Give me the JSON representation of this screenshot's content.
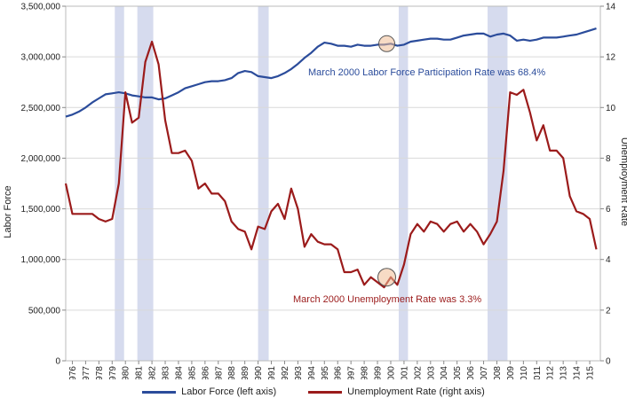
{
  "chart_data": {
    "type": "line",
    "ylabel_left": "Labor Force",
    "ylabel_right": "Unemployment Rate",
    "ylim_left": [
      0,
      3500000
    ],
    "ylim_right": [
      0,
      14
    ],
    "yticks_left": [
      "0",
      "500,000",
      "1,000,000",
      "1,500,000",
      "2,000,000",
      "2,500,000",
      "3,000,000",
      "3,500,000"
    ],
    "yticks_right": [
      "0",
      "2",
      "4",
      "6",
      "8",
      "10",
      "12",
      "14"
    ],
    "xlim": [
      1975.5,
      2015.8
    ],
    "xticks": [
      "1976",
      "1977",
      "1978",
      "1979",
      "1980",
      "1981",
      "1982",
      "1983",
      "1984",
      "1985",
      "1986",
      "1987",
      "1988",
      "1989",
      "1990",
      "1991",
      "1992",
      "1993",
      "1994",
      "1995",
      "1996",
      "1997",
      "1998",
      "1999",
      "2000",
      "2001",
      "2002",
      "2003",
      "2004",
      "2005",
      "2006",
      "2007",
      "2008",
      "2009",
      "2010",
      "2011",
      "2012",
      "2013",
      "2014",
      "2015"
    ],
    "grid": true,
    "legend_position": "bottom",
    "recessions": [
      [
        1979.2,
        1979.9
      ],
      [
        1980.9,
        1982.1
      ],
      [
        1990.0,
        1990.8
      ],
      [
        2000.6,
        2001.3
      ],
      [
        2007.3,
        2008.8
      ]
    ],
    "series": [
      {
        "name": "Labor Force (left axis)",
        "axis": "left",
        "color": "#2b4c9b",
        "x": [
          1975.5,
          1976.0,
          1976.5,
          1977.0,
          1977.5,
          1978.0,
          1978.5,
          1979.0,
          1979.5,
          1980.0,
          1980.5,
          1981.0,
          1981.5,
          1982.0,
          1982.5,
          1983.0,
          1983.5,
          1984.0,
          1984.5,
          1985.0,
          1985.5,
          1986.0,
          1986.5,
          1987.0,
          1987.5,
          1988.0,
          1988.5,
          1989.0,
          1989.5,
          1990.0,
          1990.5,
          1991.0,
          1991.5,
          1992.0,
          1992.5,
          1993.0,
          1993.5,
          1994.0,
          1994.5,
          1995.0,
          1995.5,
          1996.0,
          1996.5,
          1997.0,
          1997.5,
          1998.0,
          1998.5,
          1999.0,
          1999.5,
          2000.0,
          2000.5,
          2001.0,
          2001.5,
          2002.0,
          2002.5,
          2003.0,
          2003.5,
          2004.0,
          2004.5,
          2005.0,
          2005.5,
          2006.0,
          2006.5,
          2007.0,
          2007.5,
          2008.0,
          2008.5,
          2009.0,
          2009.5,
          2010.0,
          2010.5,
          2011.0,
          2011.5,
          2012.0,
          2012.5,
          2013.0,
          2013.5,
          2014.0,
          2014.5,
          2015.0,
          2015.5
        ],
        "values": [
          2410000,
          2430000,
          2460000,
          2500000,
          2550000,
          2590000,
          2630000,
          2640000,
          2650000,
          2640000,
          2620000,
          2610000,
          2600000,
          2600000,
          2580000,
          2590000,
          2620000,
          2650000,
          2690000,
          2710000,
          2730000,
          2750000,
          2760000,
          2760000,
          2770000,
          2790000,
          2840000,
          2860000,
          2850000,
          2810000,
          2800000,
          2790000,
          2810000,
          2840000,
          2880000,
          2930000,
          2990000,
          3040000,
          3100000,
          3140000,
          3130000,
          3110000,
          3110000,
          3100000,
          3120000,
          3110000,
          3110000,
          3120000,
          3120000,
          3130000,
          3110000,
          3120000,
          3150000,
          3160000,
          3170000,
          3180000,
          3180000,
          3170000,
          3170000,
          3190000,
          3210000,
          3220000,
          3230000,
          3230000,
          3200000,
          3220000,
          3230000,
          3210000,
          3160000,
          3170000,
          3160000,
          3170000,
          3190000,
          3190000,
          3190000,
          3200000,
          3210000,
          3220000,
          3240000,
          3260000,
          3280000
        ]
      },
      {
        "name": "Unemployment Rate (right axis)",
        "axis": "right",
        "color": "#9b1b1b",
        "x": [
          1975.5,
          1976.0,
          1976.5,
          1977.0,
          1977.5,
          1978.0,
          1978.5,
          1979.0,
          1979.5,
          1980.0,
          1980.5,
          1981.0,
          1981.5,
          1982.0,
          1982.5,
          1983.0,
          1983.5,
          1984.0,
          1984.5,
          1985.0,
          1985.5,
          1986.0,
          1986.5,
          1987.0,
          1987.5,
          1988.0,
          1988.5,
          1989.0,
          1989.5,
          1990.0,
          1990.5,
          1991.0,
          1991.5,
          1992.0,
          1992.5,
          1993.0,
          1993.5,
          1994.0,
          1994.5,
          1995.0,
          1995.5,
          1996.0,
          1996.5,
          1997.0,
          1997.5,
          1998.0,
          1998.5,
          1999.0,
          1999.5,
          2000.0,
          2000.5,
          2001.0,
          2001.5,
          2002.0,
          2002.5,
          2003.0,
          2003.5,
          2004.0,
          2004.5,
          2005.0,
          2005.5,
          2006.0,
          2006.5,
          2007.0,
          2007.5,
          2008.0,
          2008.5,
          2009.0,
          2009.5,
          2010.0,
          2010.5,
          2011.0,
          2011.5,
          2012.0,
          2012.5,
          2013.0,
          2013.5,
          2014.0,
          2014.5,
          2015.0,
          2015.5
        ],
        "values": [
          7.0,
          5.8,
          5.8,
          5.8,
          5.8,
          5.6,
          5.5,
          5.6,
          7.0,
          10.6,
          9.4,
          9.6,
          11.8,
          12.6,
          11.7,
          9.5,
          8.2,
          8.2,
          8.3,
          7.9,
          6.8,
          7.0,
          6.6,
          6.6,
          6.3,
          5.5,
          5.2,
          5.1,
          4.4,
          5.3,
          5.2,
          5.9,
          6.2,
          5.6,
          6.8,
          6.0,
          4.5,
          5.0,
          4.7,
          4.6,
          4.6,
          4.4,
          3.5,
          3.5,
          3.6,
          3.0,
          3.3,
          3.1,
          2.9,
          3.3,
          3.0,
          3.8,
          5.0,
          5.4,
          5.1,
          5.5,
          5.4,
          5.1,
          5.4,
          5.5,
          5.1,
          5.4,
          5.1,
          4.6,
          5.0,
          5.5,
          7.5,
          10.6,
          10.5,
          10.7,
          9.8,
          8.7,
          9.3,
          8.3,
          8.3,
          8.0,
          6.5,
          5.9,
          5.8,
          5.6,
          4.4
        ]
      }
    ],
    "annotations": [
      {
        "text": "March 2000 Labor Force Participation Rate was 68.4%",
        "color": "#2b4c9b"
      },
      {
        "text": "March 2000 Unemployment Rate was 3.3%",
        "color": "#9b1b1b"
      }
    ]
  }
}
